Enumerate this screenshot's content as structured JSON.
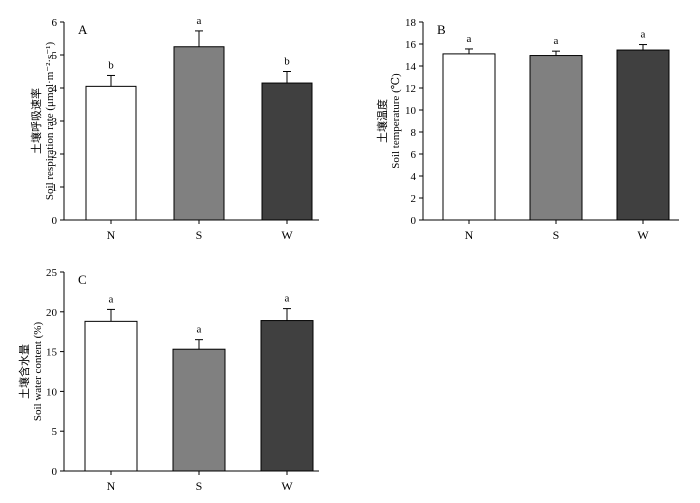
{
  "colors": {
    "N": "#ffffff",
    "S": "#808080",
    "W": "#404040",
    "axis": "#000000"
  },
  "chart_data": [
    {
      "type": "bar",
      "panel": "A",
      "categories": [
        "N",
        "S",
        "W"
      ],
      "values": [
        4.05,
        5.25,
        4.15
      ],
      "errors": [
        0.33,
        0.48,
        0.35
      ],
      "significance": [
        "b",
        "a",
        "b"
      ],
      "ylabel_cn": "土壤呼吸速率",
      "ylabel": "Soil respiration rate (μmol·m⁻²·s⁻¹)",
      "ylim": [
        0,
        6
      ],
      "yticks": [
        0,
        1,
        2,
        3,
        4,
        5,
        6
      ],
      "grid": false
    },
    {
      "type": "bar",
      "panel": "B",
      "categories": [
        "N",
        "S",
        "W"
      ],
      "values": [
        15.1,
        14.95,
        15.45
      ],
      "errors": [
        0.45,
        0.4,
        0.5
      ],
      "significance": [
        "a",
        "a",
        "a"
      ],
      "ylabel_cn": "土壤温度",
      "ylabel": "Soil temperature (℃)",
      "ylim": [
        0,
        18
      ],
      "yticks": [
        0,
        2,
        4,
        6,
        8,
        10,
        12,
        14,
        16,
        18
      ],
      "grid": false
    },
    {
      "type": "bar",
      "panel": "C",
      "categories": [
        "N",
        "S",
        "W"
      ],
      "values": [
        18.8,
        15.3,
        18.9
      ],
      "errors": [
        1.5,
        1.2,
        1.5
      ],
      "significance": [
        "a",
        "a",
        "a"
      ],
      "ylabel_cn": "土壤含水量",
      "ylabel": "Soil water content (%)",
      "ylim": [
        0,
        25
      ],
      "yticks": [
        0,
        5,
        10,
        15,
        20,
        25
      ],
      "grid": false
    }
  ]
}
